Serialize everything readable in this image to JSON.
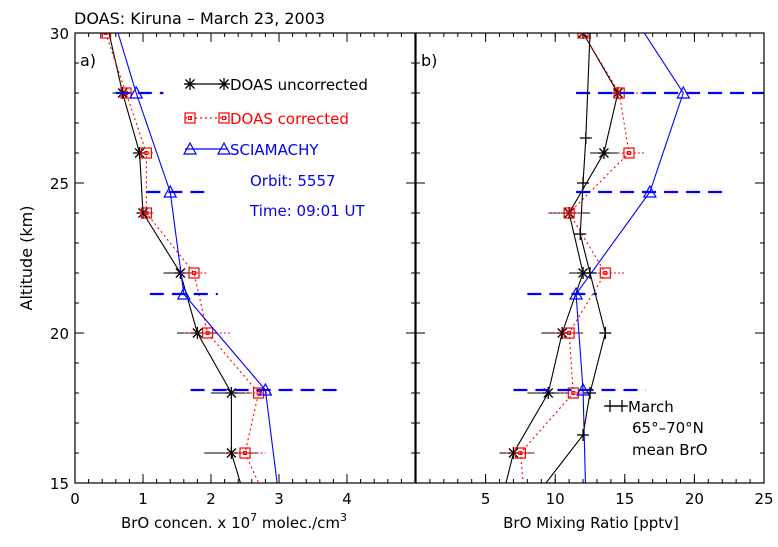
{
  "figure_title": "DOAS:  Kiruna – March 23, 2003",
  "colors": {
    "uncorrected": "#000000",
    "corrected": "#ff0000",
    "sciamachy": "#0000ff",
    "axis": "#000000"
  },
  "chart_data": [
    {
      "type": "line",
      "panel_label": "a)",
      "xlabel": "BrO concen. x 10",
      "xlabel_sup": "7",
      "xlabel_tail": " molec./cm",
      "xlabel_sup2": "3",
      "ylabel": "Altitude (km)",
      "xlim": [
        0,
        5
      ],
      "ylim": [
        15,
        30
      ],
      "xticks": [
        0,
        1,
        2,
        3,
        4
      ],
      "xtick_labels": [
        "0",
        "1",
        "2",
        "3",
        "4"
      ],
      "yticks": [
        15,
        20,
        25,
        30
      ],
      "ytick_labels": [
        "15",
        "20",
        "25",
        "30"
      ],
      "legend": [
        "DOAS uncorrected",
        "DOAS corrected",
        "SCIAMACHY"
      ],
      "annotations": [
        "Orbit: 5557",
        "Time: 09:01 UT"
      ],
      "series": [
        {
          "name": "DOAS uncorrected",
          "color": "#000000",
          "style": "solid",
          "marker": "asterisk",
          "points": [
            [
              0.4,
              31
            ],
            [
              0.7,
              28
            ],
            [
              0.95,
              26
            ],
            [
              1.0,
              24
            ],
            [
              1.55,
              22
            ],
            [
              1.8,
              20
            ],
            [
              2.3,
              18
            ],
            [
              2.3,
              16
            ],
            [
              2.5,
              14.5
            ]
          ],
          "errorbars": [
            [
              28,
              0.55,
              0.85
            ],
            [
              26,
              0.85,
              1.05
            ],
            [
              24,
              0.9,
              1.15
            ],
            [
              22,
              1.3,
              1.8
            ],
            [
              20,
              1.5,
              2.1
            ],
            [
              18,
              2.0,
              2.6
            ],
            [
              16,
              1.9,
              2.7
            ]
          ]
        },
        {
          "name": "DOAS corrected",
          "color": "#ff0000",
          "style": "dotted",
          "marker": "square",
          "points": [
            [
              0.45,
              30
            ],
            [
              0.75,
              28
            ],
            [
              1.05,
              26
            ],
            [
              1.05,
              24
            ],
            [
              1.75,
              22
            ],
            [
              1.95,
              20
            ],
            [
              2.7,
              18
            ],
            [
              2.5,
              16
            ],
            [
              2.8,
              14.5
            ]
          ],
          "errorbars": [
            [
              28,
              0.6,
              0.9
            ],
            [
              26,
              0.95,
              1.15
            ],
            [
              24,
              0.95,
              1.15
            ],
            [
              22,
              1.55,
              1.95
            ],
            [
              20,
              1.6,
              2.3
            ],
            [
              18,
              2.5,
              2.9
            ],
            [
              16,
              2.2,
              2.8
            ]
          ]
        },
        {
          "name": "SCIAMACHY",
          "color": "#0000ff",
          "style": "solid",
          "marker": "triangle",
          "points": [
            [
              0.5,
              31
            ],
            [
              0.9,
              28
            ],
            [
              1.4,
              24.7
            ],
            [
              1.6,
              21.3
            ],
            [
              2.8,
              18.1
            ],
            [
              3.0,
              14.5
            ]
          ],
          "range_bars": [
            [
              28,
              0.6,
              1.3
            ],
            [
              24.7,
              1.05,
              1.9
            ],
            [
              21.3,
              1.1,
              2.1
            ],
            [
              18.1,
              1.7,
              3.9
            ]
          ]
        }
      ]
    },
    {
      "type": "line",
      "panel_label": "b)",
      "xlabel": "BrO Mixing Ratio [pptv]",
      "xlim": [
        0,
        25
      ],
      "ylim": [
        15,
        30
      ],
      "xticks": [
        0,
        5,
        10,
        15,
        20,
        25
      ],
      "xtick_labels": [
        "",
        "5",
        "10",
        "15",
        "20",
        "25"
      ],
      "yticks": [
        15,
        20,
        25,
        30
      ],
      "legend": [
        "March",
        "65°–70°N",
        "mean BrO"
      ],
      "series": [
        {
          "name": "DOAS uncorrected",
          "color": "#000000",
          "style": "solid",
          "marker": "asterisk",
          "points": [
            [
              12,
              30
            ],
            [
              14.5,
              28
            ],
            [
              13.5,
              26
            ],
            [
              11,
              24
            ],
            [
              12,
              22
            ],
            [
              10.5,
              20
            ],
            [
              9.5,
              18
            ],
            [
              7,
              16
            ],
            [
              6.2,
              14.5
            ]
          ],
          "errorbars": [
            [
              28,
              13.8,
              15.3
            ],
            [
              26,
              12.5,
              14.5
            ],
            [
              24,
              9.5,
              12.5
            ],
            [
              22,
              11.0,
              13.0
            ],
            [
              20,
              9.0,
              12.0
            ],
            [
              18,
              8.0,
              11.0
            ],
            [
              16,
              6.0,
              8.5
            ]
          ]
        },
        {
          "name": "DOAS corrected",
          "color": "#ff0000",
          "style": "dotted",
          "marker": "square",
          "points": [
            [
              12,
              30
            ],
            [
              14.6,
              28
            ],
            [
              15.3,
              26
            ],
            [
              11,
              24
            ],
            [
              13.6,
              22
            ],
            [
              11.0,
              20
            ],
            [
              11.3,
              18
            ],
            [
              7.5,
              16
            ],
            [
              7.8,
              14.5
            ]
          ],
          "errorbars": [
            [
              28,
              13.8,
              16.8
            ],
            [
              26,
              14.5,
              16.5
            ],
            [
              24,
              9.5,
              12.0
            ],
            [
              22,
              12.5,
              15.0
            ],
            [
              20,
              10.0,
              12.0
            ],
            [
              18,
              10.3,
              12.3
            ],
            [
              16,
              6.5,
              8.5
            ]
          ]
        },
        {
          "name": "SCIAMACHY",
          "color": "#0000ff",
          "style": "solid",
          "marker": "triangle",
          "points": [
            [
              15,
              31
            ],
            [
              19.2,
              28
            ],
            [
              16.8,
              24.7
            ],
            [
              11.5,
              21.3
            ],
            [
              12,
              18.1
            ],
            [
              12.2,
              14.5
            ]
          ],
          "range_bars": [
            [
              28,
              11.5,
              25.5
            ],
            [
              24.7,
              11.5,
              22.0
            ],
            [
              21.3,
              8.0,
              13.0
            ],
            [
              18.1,
              7.0,
              16.5
            ]
          ]
        },
        {
          "name": "March 65°–70°N mean BrO",
          "color": "#000000",
          "style": "solid",
          "marker": "plus",
          "points": [
            [
              12.5,
              30
            ],
            [
              12.2,
              26.5
            ],
            [
              12.0,
              25
            ],
            [
              11.8,
              23.3
            ],
            [
              12.5,
              22
            ],
            [
              13.6,
              20
            ],
            [
              12.5,
              18
            ],
            [
              12.0,
              16.6
            ],
            [
              8.5,
              14.5
            ]
          ]
        }
      ]
    }
  ]
}
